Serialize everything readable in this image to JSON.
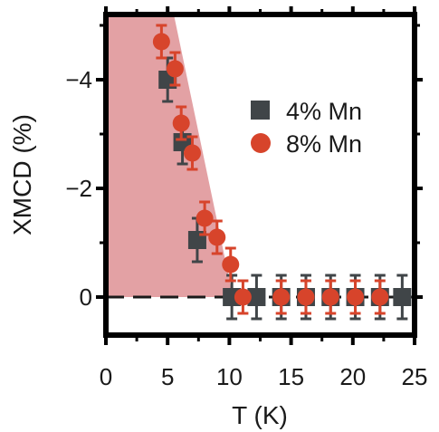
{
  "chart_data": {
    "type": "scatter",
    "title": "",
    "xlabel": "T (K)",
    "ylabel": "XMCD (%)",
    "xlim": [
      0,
      25
    ],
    "ylim": [
      0.7,
      -5.2
    ],
    "y_axis_inverted": true,
    "xticks": [
      0,
      5,
      10,
      15,
      20,
      25
    ],
    "xtick_labels": [
      "0",
      "5",
      "10",
      "15",
      "20",
      "25"
    ],
    "yticks": [
      0,
      -2,
      -4
    ],
    "ytick_labels": [
      "0",
      "−2",
      "−4"
    ],
    "grid": false,
    "legend_position": "top-right",
    "zero_line": "dashed",
    "shaded_region": {
      "color": "#e3a1a4",
      "points": [
        [
          0,
          -5.2
        ],
        [
          5.5,
          -5.2
        ],
        [
          10.3,
          0
        ],
        [
          0,
          0
        ]
      ]
    },
    "series": [
      {
        "name": "4% Mn",
        "marker": "square",
        "color": "#404548",
        "x": [
          5.0,
          6.2,
          7.4,
          10.2,
          12.2,
          14.2,
          16.2,
          18.2,
          20.2,
          22.2,
          24.0
        ],
        "y": [
          -4.0,
          -2.85,
          -1.05,
          0.0,
          0.0,
          0.0,
          0.0,
          0.0,
          0.0,
          0.0,
          0.0
        ],
        "err": [
          0.4,
          0.4,
          0.4,
          0.4,
          0.4,
          0.4,
          0.4,
          0.4,
          0.4,
          0.4,
          0.4
        ]
      },
      {
        "name": "8% Mn",
        "marker": "circle",
        "color": "#d7442b",
        "x": [
          4.5,
          5.6,
          6.1,
          7.0,
          8.0,
          9.0,
          10.1,
          11.1,
          14.2,
          16.2,
          18.2,
          20.2,
          22.2
        ],
        "y": [
          -4.7,
          -4.2,
          -3.2,
          -2.65,
          -1.45,
          -1.1,
          -0.6,
          0.0,
          0.0,
          0.0,
          0.0,
          0.0,
          0.0
        ],
        "err": [
          0.3,
          0.3,
          0.3,
          0.3,
          0.3,
          0.3,
          0.3,
          0.3,
          0.3,
          0.3,
          0.3,
          0.3,
          0.3
        ]
      }
    ]
  }
}
